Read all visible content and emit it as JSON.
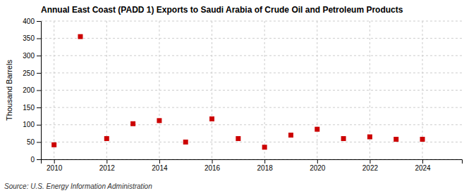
{
  "chart_data": {
    "type": "scatter",
    "title": "Annual East Coast (PADD 1) Exports to Saudi Arabia of Crude Oil and Petroleum Products",
    "ylabel": "Thousand Barrels",
    "source": "Source: U.S. Energy Information Administration",
    "x": [
      2010,
      2011,
      2012,
      2013,
      2014,
      2015,
      2016,
      2017,
      2018,
      2019,
      2020,
      2021,
      2022,
      2023,
      2024
    ],
    "values": [
      42,
      355,
      60,
      103,
      112,
      50,
      117,
      60,
      35,
      70,
      87,
      60,
      65,
      58,
      58
    ],
    "color": "#cc0000",
    "marker": "square",
    "xlim": [
      2009.5,
      2025.5
    ],
    "xticks": [
      2010,
      2012,
      2014,
      2016,
      2018,
      2020,
      2022,
      2024
    ],
    "ylim": [
      0,
      400
    ],
    "yticks": [
      0,
      50,
      100,
      150,
      200,
      250,
      300,
      350,
      400
    ],
    "grid": true
  }
}
